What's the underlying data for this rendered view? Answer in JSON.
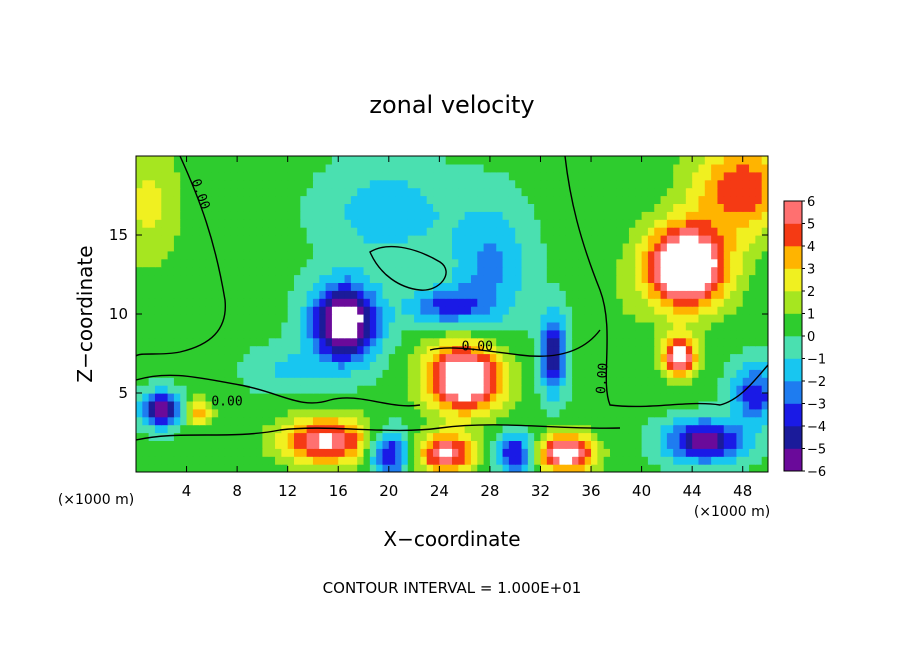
{
  "chart_data": {
    "type": "heatmap",
    "title": "zonal velocity",
    "xlabel": "X−coordinate",
    "ylabel": "Z−coordinate",
    "x_scale_note": "(×1000 m)",
    "y_scale_note": "(×1000 m)",
    "footer": "CONTOUR INTERVAL = 1.000E+01",
    "xlim": [
      0,
      50
    ],
    "ylim": [
      0,
      20
    ],
    "x_ticks": [
      4,
      8,
      12,
      16,
      20,
      24,
      28,
      32,
      36,
      40,
      44,
      48
    ],
    "y_ticks": [
      5,
      10,
      15
    ],
    "colorbar": {
      "min": -6,
      "max": 6,
      "tick_labels": [
        "6",
        "5",
        "4",
        "3",
        "2",
        "1",
        "0",
        "−1",
        "−2",
        "−3",
        "−4",
        "−5",
        "−6"
      ]
    },
    "contour_labels": [
      {
        "text": "0.00",
        "x": 4.8,
        "y": 17.5,
        "rotate": 70
      },
      {
        "text": "0.00",
        "x": 7.2,
        "y": 4.2,
        "rotate": 0
      },
      {
        "text": "0.00",
        "x": 27,
        "y": 7.7,
        "rotate": 0
      },
      {
        "text": "0.00",
        "x": 37.2,
        "y": 5.9,
        "rotate": -85
      }
    ],
    "regions": [
      {
        "x": 48,
        "y": 18,
        "v": 4.5,
        "sx": 4,
        "sy": 3
      },
      {
        "x": 43.5,
        "y": 13,
        "v": 9,
        "sx": 3.2,
        "sy": 2.6
      },
      {
        "x": 43,
        "y": 7.3,
        "v": 7,
        "sx": 1.3,
        "sy": 1.3
      },
      {
        "x": 26,
        "y": 6,
        "v": 8,
        "sx": 3,
        "sy": 2.2
      },
      {
        "x": 34,
        "y": 1.2,
        "v": 7,
        "sx": 2.2,
        "sy": 1.2
      },
      {
        "x": 24.5,
        "y": 1.2,
        "v": 6,
        "sx": 2.2,
        "sy": 1.2
      },
      {
        "x": 15,
        "y": 2,
        "v": 6,
        "sx": 3.5,
        "sy": 1.5
      },
      {
        "x": 5,
        "y": 3.8,
        "v": 4,
        "sx": 1,
        "sy": 0.8
      },
      {
        "x": 1,
        "y": 17,
        "v": 2,
        "sx": 2.5,
        "sy": 4
      },
      {
        "x": 16.5,
        "y": 9.5,
        "v": -8,
        "sx": 2.6,
        "sy": 2.4
      },
      {
        "x": 33,
        "y": 7.5,
        "v": -5.5,
        "sx": 1,
        "sy": 2.4
      },
      {
        "x": 24.5,
        "y": 10.5,
        "v": -3.5,
        "sx": 3,
        "sy": 1.2
      },
      {
        "x": 28,
        "y": 13,
        "v": -2.5,
        "sx": 3,
        "sy": 4
      },
      {
        "x": 20,
        "y": 16.5,
        "v": -2,
        "sx": 5,
        "sy": 3
      },
      {
        "x": 2,
        "y": 4,
        "v": -6,
        "sx": 1.5,
        "sy": 1.1
      },
      {
        "x": 30,
        "y": 1.2,
        "v": -4.5,
        "sx": 1.5,
        "sy": 1.3
      },
      {
        "x": 20,
        "y": 1.2,
        "v": -5,
        "sx": 1.5,
        "sy": 1.5
      },
      {
        "x": 45,
        "y": 2,
        "v": -6,
        "sx": 3,
        "sy": 1.3
      },
      {
        "x": 49,
        "y": 5,
        "v": -4,
        "sx": 1.8,
        "sy": 1.8
      },
      {
        "x": 12,
        "y": 6.5,
        "v": -1.5,
        "sx": 3,
        "sy": 1.5
      },
      {
        "x": 38,
        "y": 9,
        "v": 0.5,
        "sx": 2,
        "sy": 4
      }
    ],
    "background_value": 0.3,
    "grid": false,
    "legend": "colorbar-right"
  }
}
